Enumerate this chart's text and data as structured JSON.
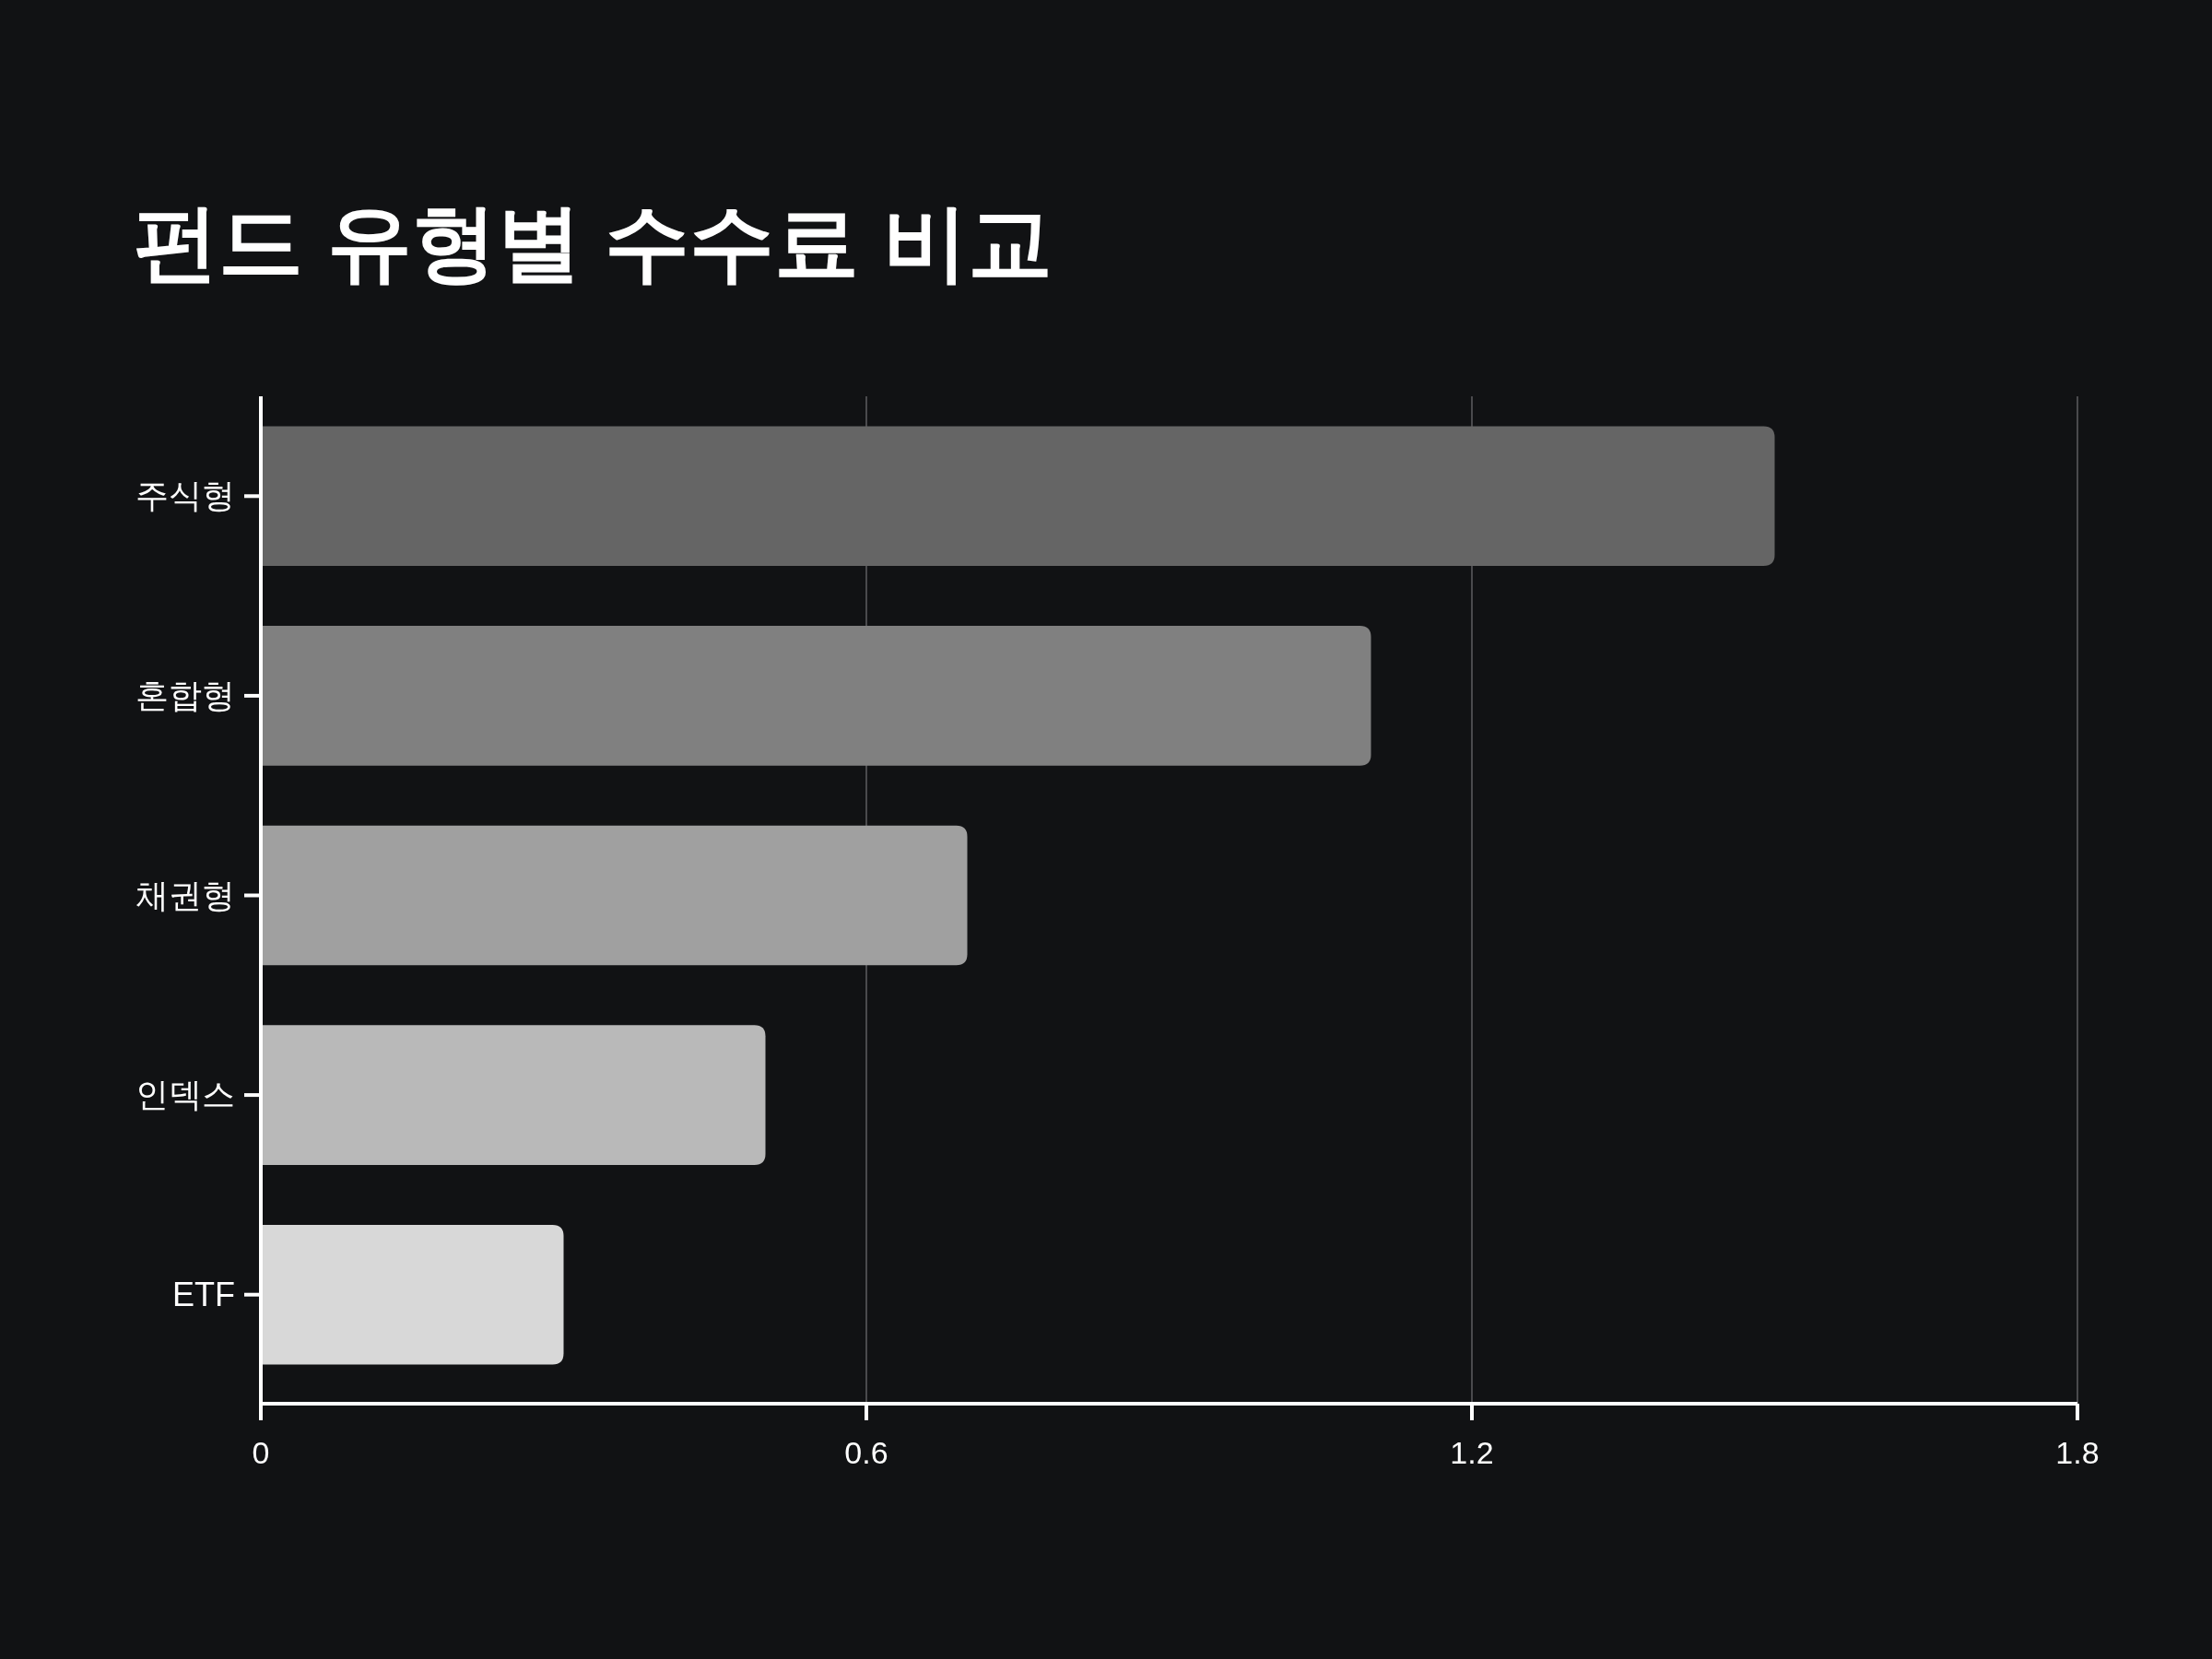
{
  "chart_data": {
    "type": "bar",
    "orientation": "horizontal",
    "title": "펀드 유형별 수수료 비교",
    "categories": [
      "주식형",
      "혼합형",
      "채권형",
      "인덱스",
      "ETF"
    ],
    "values": [
      1.5,
      1.1,
      0.7,
      0.5,
      0.3
    ],
    "colors": [
      "#656565",
      "#808080",
      "#a0a0a0",
      "#b9b9b9",
      "#d8d8d8"
    ],
    "xlim": [
      0,
      1.8
    ],
    "xticks": [
      0,
      0.6,
      1.2,
      1.8
    ],
    "grid": "x"
  }
}
